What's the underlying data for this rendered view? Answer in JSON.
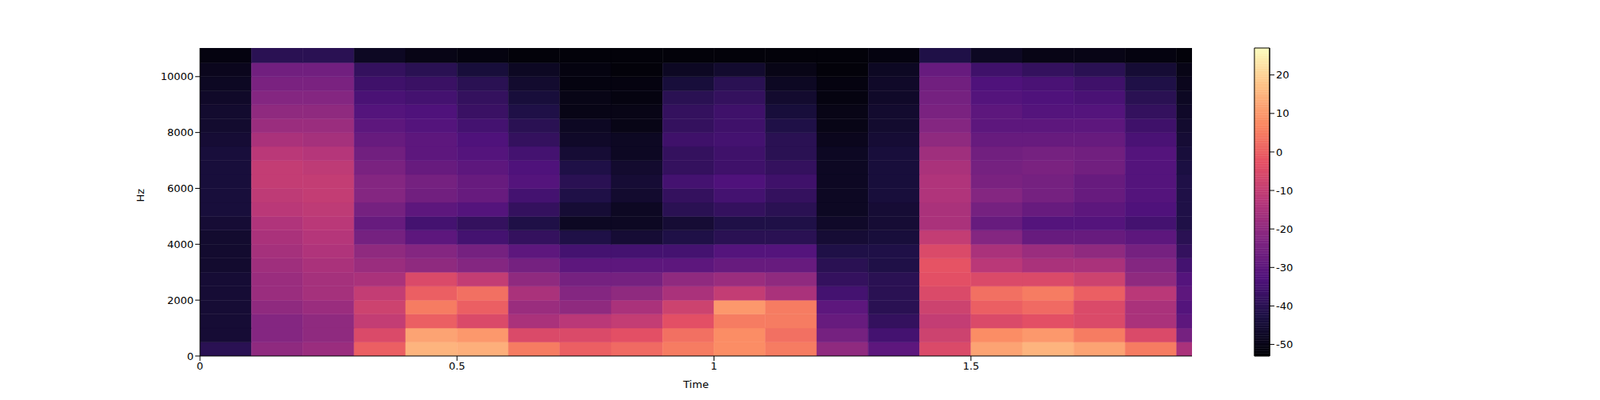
{
  "chart_data": {
    "type": "heatmap",
    "x_label": "Time",
    "y_label": "Hz",
    "xlim": [
      0,
      1.93
    ],
    "xticks": [
      0,
      0.5,
      1,
      1.5
    ],
    "ylim": [
      0,
      11025
    ],
    "yticks": [
      0,
      2000,
      4000,
      6000,
      8000,
      10000
    ],
    "x_edges": [
      0,
      0.1,
      0.2,
      0.3,
      0.4,
      0.5,
      0.6,
      0.7,
      0.8,
      0.9,
      1.0,
      1.1,
      1.2,
      1.3,
      1.4,
      1.5,
      1.6,
      1.7,
      1.8,
      1.9,
      1.93
    ],
    "y_edges": [
      0,
      500,
      1000,
      1500,
      2000,
      2500,
      3000,
      3500,
      4000,
      4500,
      5000,
      5500,
      6000,
      6500,
      7000,
      7500,
      8000,
      8500,
      9000,
      9500,
      10000,
      10500,
      11025
    ],
    "cells": [
      [
        -40,
        -20,
        -18,
        0,
        15,
        14,
        5,
        0,
        2,
        5,
        8,
        5,
        -20,
        -30,
        -5,
        12,
        15,
        12,
        5,
        -15
      ],
      [
        -45,
        -22,
        -20,
        -5,
        12,
        10,
        -5,
        -5,
        -3,
        3,
        8,
        3,
        -25,
        -35,
        -8,
        8,
        10,
        5,
        -5,
        -25
      ],
      [
        -45,
        -22,
        -20,
        -10,
        0,
        -5,
        -15,
        -12,
        -10,
        -3,
        5,
        5,
        -28,
        -38,
        -10,
        -5,
        -3,
        -5,
        -15,
        -30
      ],
      [
        -45,
        -20,
        -18,
        -8,
        5,
        0,
        -18,
        -20,
        -15,
        -8,
        10,
        5,
        -30,
        -40,
        -8,
        0,
        2,
        -5,
        -15,
        -32
      ],
      [
        -45,
        -18,
        -16,
        -10,
        0,
        3,
        -15,
        -22,
        -20,
        -15,
        -10,
        -15,
        -35,
        -40,
        -5,
        3,
        5,
        0,
        -12,
        -30
      ],
      [
        -45,
        -18,
        -16,
        -15,
        -5,
        -10,
        -20,
        -25,
        -25,
        -20,
        -18,
        -20,
        -38,
        -40,
        -3,
        -5,
        -5,
        -8,
        -20,
        -32
      ],
      [
        -46,
        -17,
        -15,
        -18,
        -20,
        -22,
        -25,
        -30,
        -30,
        -30,
        -28,
        -28,
        -40,
        -42,
        -2,
        -12,
        -15,
        -15,
        -22,
        -35
      ],
      [
        -46,
        -16,
        -14,
        -20,
        -22,
        -25,
        -30,
        -35,
        -35,
        -35,
        -32,
        -32,
        -42,
        -42,
        -5,
        -15,
        -18,
        -20,
        -25,
        -38
      ],
      [
        -46,
        -15,
        -13,
        -25,
        -30,
        -35,
        -38,
        -42,
        -45,
        -42,
        -40,
        -40,
        -45,
        -44,
        -10,
        -22,
        -28,
        -28,
        -30,
        -40
      ],
      [
        -45,
        -14,
        -12,
        -28,
        -35,
        -38,
        -42,
        -48,
        -48,
        -45,
        -42,
        -42,
        -47,
        -45,
        -15,
        -28,
        -32,
        -32,
        -35,
        -42
      ],
      [
        -44,
        -12,
        -11,
        -25,
        -30,
        -32,
        -38,
        -45,
        -48,
        -40,
        -38,
        -40,
        -48,
        -45,
        -15,
        -25,
        -28,
        -30,
        -33,
        -42
      ],
      [
        -44,
        -11,
        -10,
        -22,
        -26,
        -28,
        -35,
        -42,
        -46,
        -38,
        -35,
        -38,
        -48,
        -44,
        -14,
        -22,
        -25,
        -28,
        -32,
        -42
      ],
      [
        -44,
        -10,
        -10,
        -22,
        -25,
        -28,
        -32,
        -40,
        -45,
        -35,
        -33,
        -36,
        -48,
        -44,
        -14,
        -24,
        -25,
        -28,
        -32,
        -42
      ],
      [
        -44,
        -10,
        -11,
        -24,
        -28,
        -30,
        -33,
        -42,
        -46,
        -38,
        -36,
        -38,
        -48,
        -44,
        -15,
        -25,
        -24,
        -26,
        -32,
        -43
      ],
      [
        -44,
        -12,
        -13,
        -26,
        -30,
        -32,
        -35,
        -45,
        -48,
        -38,
        -36,
        -40,
        -48,
        -44,
        -17,
        -26,
        -25,
        -26,
        -32,
        -44
      ],
      [
        -45,
        -15,
        -16,
        -28,
        -30,
        -33,
        -38,
        -47,
        -48,
        -36,
        -35,
        -40,
        -49,
        -45,
        -20,
        -28,
        -28,
        -28,
        -34,
        -45
      ],
      [
        -46,
        -18,
        -18,
        -30,
        -32,
        -35,
        -40,
        -48,
        -50,
        -38,
        -36,
        -42,
        -50,
        -46,
        -22,
        -30,
        -30,
        -30,
        -36,
        -46
      ],
      [
        -46,
        -20,
        -20,
        -32,
        -33,
        -37,
        -42,
        -50,
        -50,
        -38,
        -36,
        -44,
        -50,
        -46,
        -24,
        -30,
        -32,
        -32,
        -38,
        -47
      ],
      [
        -47,
        -22,
        -22,
        -34,
        -35,
        -38,
        -44,
        -50,
        -51,
        -40,
        -38,
        -46,
        -51,
        -47,
        -25,
        -32,
        -33,
        -34,
        -40,
        -48
      ],
      [
        -48,
        -24,
        -24,
        -36,
        -37,
        -40,
        -46,
        -51,
        -51,
        -44,
        -40,
        -48,
        -51,
        -47,
        -26,
        -33,
        -34,
        -36,
        -42,
        -49
      ],
      [
        -49,
        -26,
        -26,
        -38,
        -40,
        -44,
        -48,
        -51,
        -52,
        -48,
        -46,
        -50,
        -52,
        -48,
        -28,
        -36,
        -38,
        -40,
        -45,
        -50
      ],
      [
        -51,
        -40,
        -40,
        -48,
        -50,
        -51,
        -52,
        -52,
        -52,
        -52,
        -52,
        -52,
        -52,
        -51,
        -42,
        -48,
        -50,
        -50,
        -51,
        -52
      ]
    ],
    "colorbar": {
      "range": [
        -53,
        27
      ],
      "ticks": [
        -50,
        -40,
        -30,
        -20,
        -10,
        0,
        10,
        20
      ]
    }
  }
}
